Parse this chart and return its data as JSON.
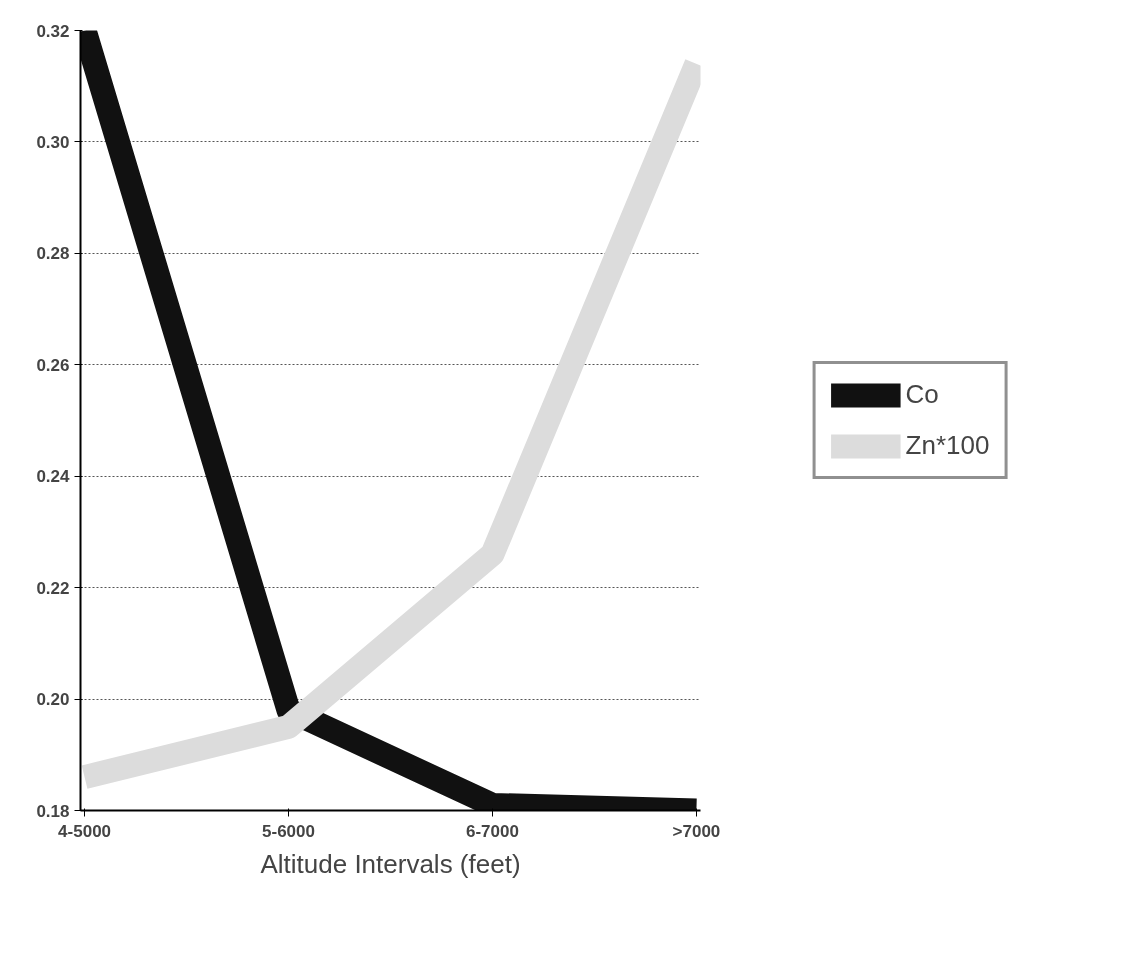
{
  "chart_data": {
    "type": "line",
    "xlabel": "Altitude Intervals (feet)",
    "categories": [
      "4-5000",
      "5-6000",
      "6-7000",
      ">7000"
    ],
    "series": [
      {
        "name": "Co",
        "color": "#111111",
        "values": [
          0.32,
          0.198,
          0.181,
          0.18
        ]
      },
      {
        "name": "Zn*100",
        "color": "#dcdcdc",
        "values": [
          0.186,
          0.195,
          0.226,
          0.314
        ]
      }
    ],
    "ylim": [
      0.18,
      0.32
    ],
    "yticks": [
      {
        "value": 0.18,
        "label": "0.18"
      },
      {
        "value": 0.2,
        "label": "0.20"
      },
      {
        "value": 0.22,
        "label": "0.22"
      },
      {
        "value": 0.24,
        "label": "0.24"
      },
      {
        "value": 0.26,
        "label": "0.26"
      },
      {
        "value": 0.28,
        "label": "0.28"
      },
      {
        "value": 0.3,
        "label": "0.30"
      },
      {
        "value": 0.32,
        "label": "0.32"
      }
    ],
    "grid": "y",
    "legend": "right",
    "marker": "none",
    "line_style": "solid"
  }
}
